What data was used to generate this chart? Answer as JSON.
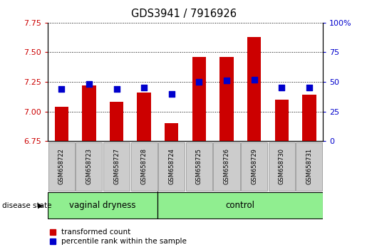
{
  "title": "GDS3941 / 7916926",
  "samples": [
    "GSM658722",
    "GSM658723",
    "GSM658727",
    "GSM658728",
    "GSM658724",
    "GSM658725",
    "GSM658726",
    "GSM658729",
    "GSM658730",
    "GSM658731"
  ],
  "transformed_count": [
    7.04,
    7.22,
    7.08,
    7.16,
    6.9,
    7.46,
    7.46,
    7.63,
    7.1,
    7.14
  ],
  "percentile_rank": [
    44,
    48,
    44,
    45,
    40,
    50,
    51,
    52,
    45,
    45
  ],
  "ylim_left": [
    6.75,
    7.75
  ],
  "ylim_right": [
    0,
    100
  ],
  "yticks_left": [
    6.75,
    7.0,
    7.25,
    7.5,
    7.75
  ],
  "yticks_right": [
    0,
    25,
    50,
    75,
    100
  ],
  "ytick_right_labels": [
    "0",
    "25",
    "50",
    "75",
    "100%"
  ],
  "groups": [
    {
      "label": "vaginal dryness",
      "start": 0,
      "end": 4
    },
    {
      "label": "control",
      "start": 4,
      "end": 10
    }
  ],
  "group_color": "#90EE90",
  "group_border_color": "#000000",
  "bar_color": "#CC0000",
  "dot_color": "#0000CC",
  "bar_width": 0.5,
  "dot_size": 28,
  "axis_left_color": "#CC0000",
  "axis_right_color": "#0000CC",
  "sample_box_color": "#CCCCCC",
  "sample_box_edge": "#888888",
  "disease_state_label": "disease state",
  "legend_labels": [
    "transformed count",
    "percentile rank within the sample"
  ],
  "fig_bg": "#FFFFFF"
}
